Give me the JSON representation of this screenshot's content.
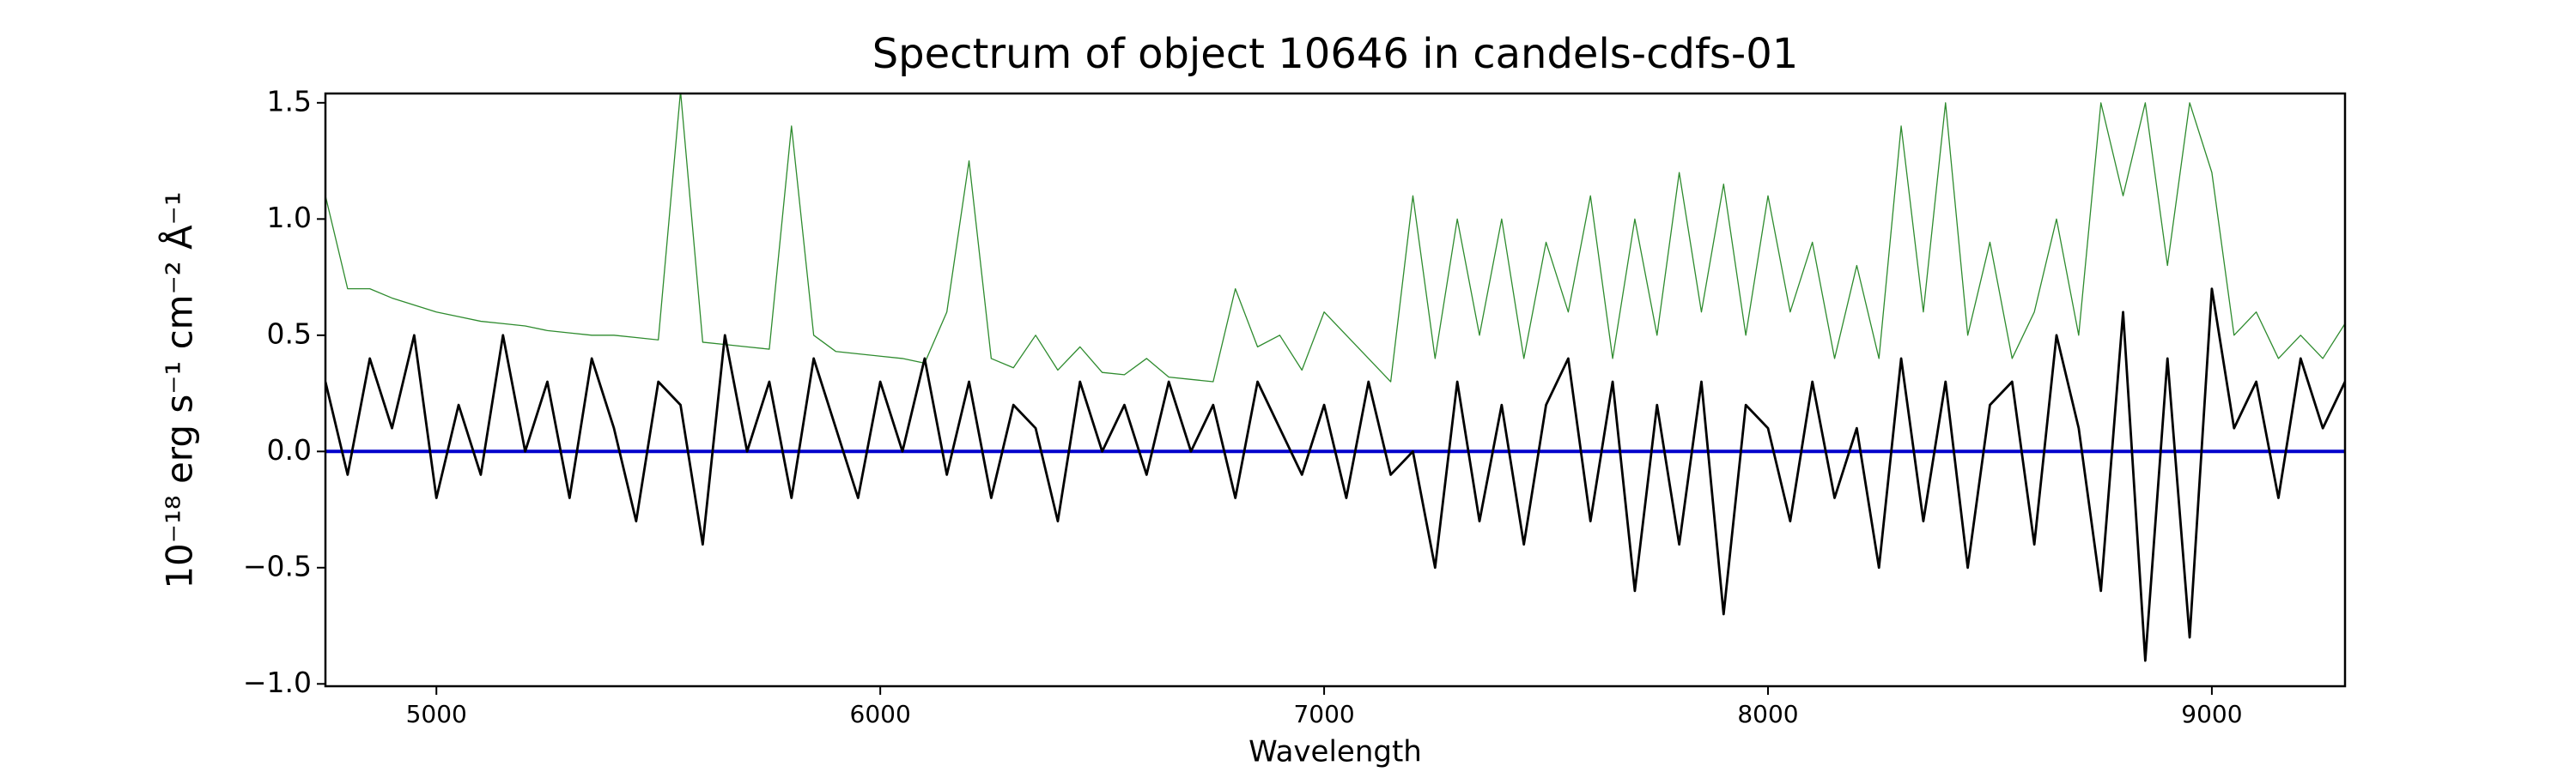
{
  "chart_data": {
    "type": "line",
    "title": "Spectrum of object 10646 in candels-cdfs-01",
    "x_label": "Wavelength",
    "y_label": "10⁻¹⁸ erg s⁻¹ cm⁻² Å⁻¹",
    "x": [
      4750,
      4800,
      4850,
      4900,
      4950,
      5000,
      5050,
      5100,
      5150,
      5200,
      5250,
      5300,
      5350,
      5400,
      5450,
      5500,
      5550,
      5600,
      5650,
      5700,
      5750,
      5800,
      5850,
      5900,
      5950,
      6000,
      6050,
      6100,
      6150,
      6200,
      6250,
      6300,
      6350,
      6400,
      6450,
      6500,
      6550,
      6600,
      6650,
      6700,
      6750,
      6800,
      6850,
      6900,
      6950,
      7000,
      7050,
      7100,
      7150,
      7200,
      7250,
      7300,
      7350,
      7400,
      7450,
      7500,
      7550,
      7600,
      7650,
      7700,
      7750,
      7800,
      7850,
      7900,
      7950,
      8000,
      8050,
      8100,
      8150,
      8200,
      8250,
      8300,
      8350,
      8400,
      8450,
      8500,
      8550,
      8600,
      8650,
      8700,
      8750,
      8800,
      8850,
      8900,
      8950,
      9000,
      9050,
      9100,
      9150,
      9200,
      9250,
      9300
    ],
    "series": [
      {
        "color": "#2e8b2e",
        "width": 1.3,
        "values": [
          1.1,
          0.7,
          0.7,
          0.66,
          0.63,
          0.6,
          0.58,
          0.56,
          0.55,
          0.54,
          0.52,
          0.51,
          0.5,
          0.5,
          0.49,
          0.48,
          1.55,
          0.47,
          0.46,
          0.45,
          0.44,
          1.4,
          0.5,
          0.43,
          0.42,
          0.41,
          0.4,
          0.38,
          0.6,
          1.25,
          0.4,
          0.36,
          0.5,
          0.35,
          0.45,
          0.34,
          0.33,
          0.4,
          0.32,
          0.31,
          0.3,
          0.7,
          0.45,
          0.5,
          0.35,
          0.6,
          0.5,
          0.4,
          0.3,
          1.1,
          0.4,
          1.0,
          0.5,
          1.0,
          0.4,
          0.9,
          0.6,
          1.1,
          0.4,
          1.0,
          0.5,
          1.2,
          0.6,
          1.15,
          0.5,
          1.1,
          0.6,
          0.9,
          0.4,
          0.8,
          0.4,
          1.4,
          0.6,
          1.5,
          0.5,
          0.9,
          0.4,
          0.6,
          1.0,
          0.5,
          1.5,
          1.1,
          1.5,
          0.8,
          1.5,
          1.2,
          0.5,
          0.6,
          0.4,
          0.5,
          0.4,
          0.55
        ]
      },
      {
        "color": "#0000cc",
        "width": 4,
        "values": [
          0,
          0,
          0,
          0,
          0,
          0,
          0,
          0,
          0,
          0,
          0,
          0,
          0,
          0,
          0,
          0,
          0,
          0,
          0,
          0,
          0,
          0,
          0,
          0,
          0,
          0,
          0,
          0,
          0,
          0,
          0,
          0,
          0,
          0,
          0,
          0,
          0,
          0,
          0,
          0,
          0,
          0,
          0,
          0,
          0,
          0,
          0,
          0,
          0,
          0,
          0,
          0,
          0,
          0,
          0,
          0,
          0,
          0,
          0,
          0,
          0,
          0,
          0,
          0,
          0,
          0,
          0,
          0,
          0,
          0,
          0,
          0,
          0,
          0,
          0,
          0,
          0,
          0,
          0,
          0,
          0,
          0,
          0,
          0,
          0,
          0,
          0,
          0,
          0,
          0,
          0,
          0
        ]
      },
      {
        "color": "#000000",
        "width": 2.8,
        "values": [
          0.3,
          -0.1,
          0.4,
          0.1,
          0.5,
          -0.2,
          0.2,
          -0.1,
          0.5,
          0.0,
          0.3,
          -0.2,
          0.4,
          0.1,
          -0.3,
          0.3,
          0.2,
          -0.4,
          0.5,
          0.0,
          0.3,
          -0.2,
          0.4,
          0.1,
          -0.2,
          0.3,
          0.0,
          0.4,
          -0.1,
          0.3,
          -0.2,
          0.2,
          0.1,
          -0.3,
          0.3,
          0.0,
          0.2,
          -0.1,
          0.3,
          0.0,
          0.2,
          -0.2,
          0.3,
          0.1,
          -0.1,
          0.2,
          -0.2,
          0.3,
          -0.1,
          0.0,
          -0.5,
          0.3,
          -0.3,
          0.2,
          -0.4,
          0.2,
          0.4,
          -0.3,
          0.3,
          -0.6,
          0.2,
          -0.4,
          0.3,
          -0.7,
          0.2,
          0.1,
          -0.3,
          0.3,
          -0.2,
          0.1,
          -0.5,
          0.4,
          -0.3,
          0.3,
          -0.5,
          0.2,
          0.3,
          -0.4,
          0.5,
          0.1,
          -0.6,
          0.6,
          -0.9,
          0.4,
          -0.8,
          0.7,
          0.1,
          0.3,
          -0.2,
          0.4,
          0.1,
          0.3
        ]
      }
    ],
    "xlim": [
      4750,
      9300
    ],
    "xticks": [
      5000,
      6000,
      7000,
      8000,
      9000
    ],
    "ylim": [
      -1.01,
      1.54
    ],
    "yticks": [
      {
        "value": -1,
        "label": "−1.0"
      },
      {
        "value": -0.5,
        "label": "−0.5"
      },
      {
        "value": 0,
        "label": "0.0"
      },
      0.5,
      {
        "value": 1,
        "label": "1.0"
      },
      1.5
    ],
    "grid": false
  }
}
